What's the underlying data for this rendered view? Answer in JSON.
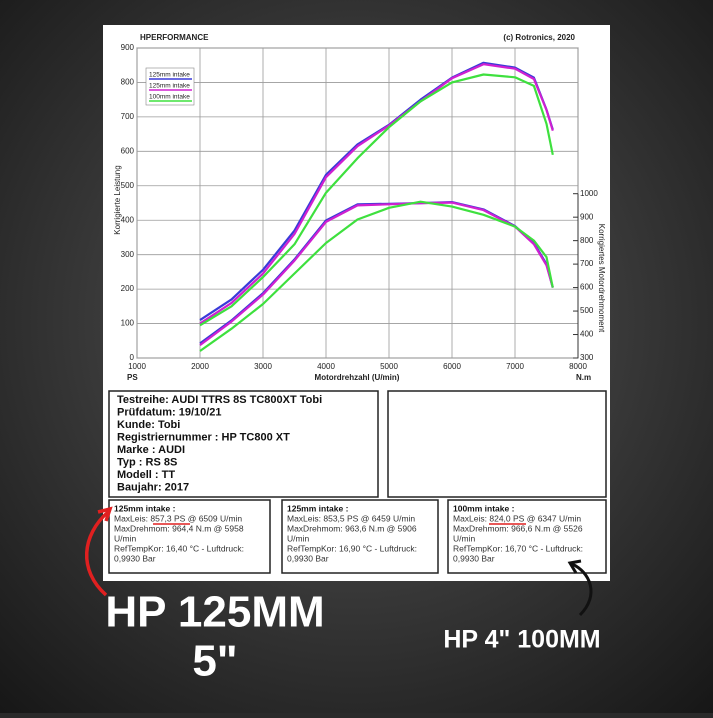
{
  "chart_data": {
    "type": "line",
    "title": "HPERFORMANCE",
    "copyright": "(c) Rotronics, 2020",
    "xlabel": "Motordrehzahl (U/min)",
    "ylabel": "Korrigierte Leistung",
    "y2label": "Korrigiertes Motordrehmoment",
    "ylabel_unit": "PS",
    "y2label_unit": "N.m",
    "x": [
      2000,
      2500,
      3000,
      3500,
      4000,
      4500,
      5000,
      5500,
      6000,
      6500,
      7000,
      7300,
      7500,
      7600
    ],
    "xlim": [
      1000,
      8000
    ],
    "xticks": [
      1000,
      2000,
      3000,
      4000,
      5000,
      6000,
      7000,
      8000
    ],
    "ylim": [
      0,
      900
    ],
    "yticks": [
      0,
      100,
      200,
      300,
      400,
      500,
      600,
      700,
      800,
      900
    ],
    "y2lim": [
      300,
      1000
    ],
    "y2ticks": [
      300,
      400,
      500,
      600,
      700,
      800,
      900,
      1000
    ],
    "grid": true,
    "legend": "top-left",
    "series": [
      {
        "name": "125mm intake",
        "color": "#3a3ad8",
        "values": [
          110,
          170,
          256,
          370,
          532,
          620,
          677,
          750,
          814,
          857,
          843,
          814,
          721,
          663
        ]
      },
      {
        "name": "125mm intake",
        "color": "#d020d0",
        "values": [
          100,
          160,
          245,
          360,
          525,
          615,
          675,
          745,
          812,
          853,
          840,
          810,
          720,
          660
        ]
      },
      {
        "name": "100mm intake",
        "color": "#3ee03e",
        "values": [
          95,
          150,
          235,
          330,
          480,
          580,
          670,
          745,
          800,
          823,
          815,
          790,
          680,
          590
        ]
      },
      {
        "color": "#3a3ad8",
        "axis": "y2",
        "values": [
          362,
          460,
          576,
          720,
          886,
          955,
          957,
          960,
          964,
          933,
          862,
          790,
          700,
          600
        ]
      },
      {
        "color": "#d020d0",
        "axis": "y2",
        "values": [
          355,
          455,
          570,
          715,
          880,
          950,
          955,
          960,
          962,
          930,
          860,
          785,
          695,
          600
        ]
      },
      {
        "color": "#3ee03e",
        "axis": "y2",
        "values": [
          330,
          425,
          530,
          660,
          790,
          890,
          940,
          966,
          945,
          910,
          860,
          800,
          730,
          600
        ]
      }
    ]
  },
  "test_info": [
    "Testreihe: AUDI TTRS 8S TC800XT Tobi",
    "Prüfdatum: 19/10/21",
    "Kunde: Tobi",
    "Registriernummer  : HP TC800 XT",
    "Marke  : AUDI",
    "Typ  : RS 8S",
    "Modell  : TT",
    "Baujahr: 2017"
  ],
  "results": [
    {
      "title": "125mm intake :",
      "lines": [
        "MaxLeis: 857,3 PS @ 6509 U/min",
        "MaxDrehmom: 964,4 N.m @ 5958",
        "U/min",
        "RefTempKor: 16,40 °C - Luftdruck:",
        "0,9930 Bar"
      ]
    },
    {
      "title": "125mm intake :",
      "lines": [
        "MaxLeis: 853,5 PS @ 6459 U/min",
        "MaxDrehmom: 963,6 N.m @ 5906",
        "U/min",
        "RefTempKor: 16,90 °C - Luftdruck:",
        "0,9930 Bar"
      ]
    },
    {
      "title": "100mm intake :",
      "lines": [
        "MaxLeis: 824,0 PS @ 6347 U/min",
        "MaxDrehmom: 966,6 N.m @ 5526",
        "U/min",
        "RefTempKor: 16,70 °C - Luftdruck:",
        "0,9930 Bar"
      ]
    }
  ],
  "overlay": {
    "left": [
      "HP 125MM",
      "5\""
    ],
    "right": "HP 4\" 100MM"
  }
}
